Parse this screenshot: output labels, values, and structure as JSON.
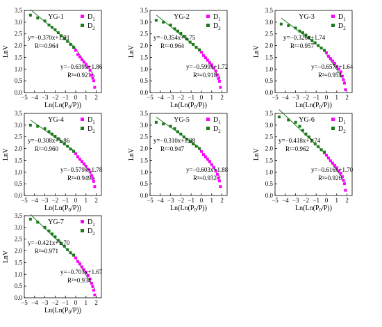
{
  "colors": {
    "d1": "#ff00ff",
    "d2": "#1a7a1a",
    "fit": "#1a7a1a",
    "axis": "#000000"
  },
  "chart_data": [
    {
      "type": "scatter",
      "title": "YG-1",
      "xlabel": "Ln(Ln(P0/P))",
      "ylabel": "LnV",
      "xlim": [
        -5,
        2.5
      ],
      "ylim": [
        0,
        3.5
      ],
      "series": [
        {
          "name": "D1",
          "x": [
            -0.2,
            0.0,
            0.2,
            0.4,
            0.6,
            0.8,
            1.0,
            1.2,
            1.4,
            1.55,
            1.65,
            1.75,
            1.85
          ],
          "y": [
            1.92,
            1.8,
            1.62,
            1.52,
            1.4,
            1.3,
            1.2,
            1.08,
            0.95,
            0.75,
            0.62,
            0.5,
            0.22
          ]
        },
        {
          "name": "D2",
          "x": [
            -4.4,
            -3.7,
            -3.0,
            -2.6,
            -2.3,
            -2.0,
            -1.7,
            -1.4,
            -1.1,
            -0.8,
            -0.5,
            -0.2
          ],
          "y": [
            3.3,
            3.18,
            3.05,
            2.88,
            2.78,
            2.68,
            2.55,
            2.42,
            2.3,
            2.18,
            2.05,
            1.93
          ]
        }
      ],
      "fits": [
        {
          "series": "D2",
          "slope": -0.37,
          "intercept": 1.91,
          "x_range": [
            -4.4,
            -0.2
          ],
          "equation": "y=−0.370x+1.91",
          "r2": "R²=0.964"
        },
        {
          "series": "D1",
          "slope": -0.639,
          "intercept": 1.86,
          "x_range": [
            -0.2,
            1.85
          ],
          "equation": "y=−0.639x+1.86",
          "r2": "R²=0.921"
        }
      ]
    },
    {
      "type": "scatter",
      "title": "YG-2",
      "xlabel": "Ln(Ln(P0/P))",
      "ylabel": "LnV",
      "xlim": [
        -5,
        2.5
      ],
      "ylim": [
        0,
        3.5
      ],
      "series": [
        {
          "name": "D1",
          "x": [
            -0.2,
            0.0,
            0.2,
            0.4,
            0.6,
            0.8,
            1.0,
            1.2,
            1.4,
            1.55,
            1.65,
            1.75,
            1.85
          ],
          "y": [
            1.82,
            1.72,
            1.58,
            1.48,
            1.38,
            1.28,
            1.18,
            1.05,
            0.92,
            0.75,
            0.6,
            0.48,
            0.22
          ]
        },
        {
          "name": "D2",
          "x": [
            -4.4,
            -3.7,
            -3.0,
            -2.6,
            -2.3,
            -2.0,
            -1.7,
            -1.4,
            -1.1,
            -0.8,
            -0.5,
            -0.2
          ],
          "y": [
            3.08,
            3.0,
            2.88,
            2.72,
            2.62,
            2.52,
            2.4,
            2.28,
            2.15,
            2.05,
            1.93,
            1.82
          ]
        }
      ],
      "fits": [
        {
          "series": "D2",
          "slope": -0.354,
          "intercept": 1.75,
          "x_range": [
            -4.4,
            -0.2
          ],
          "equation": "y=−0.354x+1.75",
          "r2": "R²=0.964"
        },
        {
          "series": "D1",
          "slope": -0.599,
          "intercept": 1.72,
          "x_range": [
            -0.2,
            1.85
          ],
          "equation": "y=−0.599x+1.72",
          "r2": "R²=0.918"
        }
      ]
    },
    {
      "type": "scatter",
      "title": "YG-3",
      "xlabel": "Ln(Ln(P0/P))",
      "ylabel": "LnV",
      "xlim": [
        -5,
        2.5
      ],
      "ylim": [
        0,
        3.5
      ],
      "series": [
        {
          "name": "D1",
          "x": [
            -0.2,
            0.0,
            0.2,
            0.4,
            0.6,
            0.8,
            1.0,
            1.2,
            1.4,
            1.55,
            1.65,
            1.75,
            1.85
          ],
          "y": [
            1.8,
            1.7,
            1.55,
            1.45,
            1.35,
            1.25,
            1.12,
            1.0,
            0.88,
            0.7,
            0.55,
            0.4,
            0.12
          ]
        },
        {
          "name": "D2",
          "x": [
            -4.4,
            -3.7,
            -3.0,
            -2.6,
            -2.3,
            -2.0,
            -1.7,
            -1.4,
            -1.1,
            -0.8,
            -0.5,
            -0.2
          ],
          "y": [
            2.92,
            2.85,
            2.75,
            2.62,
            2.55,
            2.45,
            2.35,
            2.22,
            2.12,
            2.0,
            1.9,
            1.8
          ]
        }
      ],
      "fits": [
        {
          "series": "D2",
          "slope": -0.326,
          "intercept": 1.74,
          "x_range": [
            -4.4,
            -0.2
          ],
          "equation": "y=−0.326x+1.74",
          "r2": "R²=0.957"
        },
        {
          "series": "D1",
          "slope": -0.657,
          "intercept": 1.64,
          "x_range": [
            -0.2,
            1.85
          ],
          "equation": "y=−0.657x+1.64",
          "r2": "R²=0.954"
        }
      ]
    },
    {
      "type": "scatter",
      "title": "YG-4",
      "xlabel": "Ln(Ln(P0/P))",
      "ylabel": "LnV",
      "xlim": [
        -5,
        2.5
      ],
      "ylim": [
        0,
        3.5
      ],
      "series": [
        {
          "name": "D1",
          "x": [
            -0.2,
            0.0,
            0.2,
            0.4,
            0.6,
            0.8,
            1.0,
            1.2,
            1.4,
            1.55,
            1.65,
            1.75,
            1.85
          ],
          "y": [
            1.88,
            1.78,
            1.65,
            1.55,
            1.45,
            1.35,
            1.25,
            1.12,
            1.0,
            0.85,
            0.72,
            0.6,
            0.38
          ]
        },
        {
          "name": "D2",
          "x": [
            -4.4,
            -3.7,
            -3.0,
            -2.6,
            -2.3,
            -2.0,
            -1.7,
            -1.4,
            -1.1,
            -0.8,
            -0.5,
            -0.2
          ],
          "y": [
            3.0,
            2.95,
            2.85,
            2.72,
            2.62,
            2.52,
            2.42,
            2.3,
            2.2,
            2.1,
            1.98,
            1.88
          ]
        }
      ],
      "fits": [
        {
          "series": "D2",
          "slope": -0.308,
          "intercept": 1.86,
          "x_range": [
            -4.4,
            -0.2
          ],
          "equation": "y=−0.308x+1.86",
          "r2": "R²=0.960"
        },
        {
          "series": "D1",
          "slope": -0.579,
          "intercept": 1.78,
          "x_range": [
            -0.2,
            1.85
          ],
          "equation": "y=−0.579x+1.78",
          "r2": "R²=0.949"
        }
      ]
    },
    {
      "type": "scatter",
      "title": "YG-5",
      "xlabel": "Ln(Ln(P0/P))",
      "ylabel": "LnV",
      "xlim": [
        -5,
        2.5
      ],
      "ylim": [
        0,
        3.5
      ],
      "series": [
        {
          "name": "D1",
          "x": [
            -0.2,
            0.0,
            0.2,
            0.4,
            0.6,
            0.8,
            1.0,
            1.2,
            1.4,
            1.55,
            1.65,
            1.75,
            1.85
          ],
          "y": [
            2.0,
            1.88,
            1.75,
            1.65,
            1.55,
            1.45,
            1.32,
            1.2,
            1.05,
            0.9,
            0.75,
            0.62,
            0.38
          ]
        },
        {
          "name": "D2",
          "x": [
            -4.4,
            -3.7,
            -3.0,
            -2.6,
            -2.3,
            -2.0,
            -1.7,
            -1.4,
            -1.1,
            -0.8,
            -0.5,
            -0.2
          ],
          "y": [
            3.12,
            3.05,
            2.95,
            2.85,
            2.72,
            2.62,
            2.5,
            2.4,
            2.3,
            2.2,
            2.1,
            2.0
          ]
        }
      ],
      "fits": [
        {
          "series": "D2",
          "slope": -0.31,
          "intercept": 1.98,
          "x_range": [
            -4.4,
            -0.2
          ],
          "equation": "y=−0.310x+1.98",
          "r2": "R²=0.947"
        },
        {
          "series": "D1",
          "slope": -0.603,
          "intercept": 1.88,
          "x_range": [
            -0.2,
            1.85
          ],
          "equation": "y=−0.603x+1.88",
          "r2": "R²=0.932"
        }
      ]
    },
    {
      "type": "scatter",
      "title": "YG-6",
      "xlabel": "Ln(Ln(P0/P))",
      "ylabel": "LnV",
      "xlim": [
        -5,
        2.5
      ],
      "ylim": [
        0,
        3.5
      ],
      "series": [
        {
          "name": "D1",
          "x": [
            -0.2,
            0.0,
            0.2,
            0.4,
            0.6,
            0.8,
            1.0,
            1.2,
            1.4,
            1.55,
            1.65,
            1.75,
            1.85
          ],
          "y": [
            1.82,
            1.72,
            1.6,
            1.48,
            1.38,
            1.28,
            1.18,
            1.05,
            0.95,
            0.8,
            0.65,
            0.5,
            0.22
          ]
        },
        {
          "name": "D2",
          "x": [
            -4.6,
            -3.7,
            -3.0,
            -2.6,
            -2.3,
            -2.0,
            -1.7,
            -1.4,
            -1.1,
            -0.8,
            -0.5,
            -0.2
          ],
          "y": [
            3.35,
            3.22,
            3.12,
            2.95,
            2.78,
            2.62,
            2.5,
            2.35,
            2.2,
            2.08,
            1.95,
            1.85
          ]
        }
      ],
      "fits": [
        {
          "series": "D2",
          "slope": -0.418,
          "intercept": 1.74,
          "x_range": [
            -4.6,
            -0.2
          ],
          "equation": "y=−0.418x+1.74",
          "r2": "R²=0.962"
        },
        {
          "series": "D1",
          "slope": -0.616,
          "intercept": 1.7,
          "x_range": [
            -0.2,
            1.85
          ],
          "equation": "y=−0.616x+1.70",
          "r2": "R²=0.926"
        }
      ]
    },
    {
      "type": "scatter",
      "title": "YG-7",
      "xlabel": "Ln(Ln(P0/P))",
      "ylabel": "LnV",
      "xlim": [
        -5,
        2.5
      ],
      "ylim": [
        0,
        3.5
      ],
      "series": [
        {
          "name": "D1",
          "x": [
            -0.2,
            0.0,
            0.2,
            0.4,
            0.6,
            0.8,
            1.0,
            1.2,
            1.4,
            1.55,
            1.65,
            1.75,
            1.85
          ],
          "y": [
            1.82,
            1.7,
            1.55,
            1.45,
            1.32,
            1.2,
            1.08,
            0.95,
            0.8,
            0.62,
            0.48,
            0.32,
            0.12
          ]
        },
        {
          "name": "D2",
          "x": [
            -4.4,
            -3.7,
            -3.0,
            -2.6,
            -2.3,
            -2.0,
            -1.7,
            -1.4,
            -1.1,
            -0.8,
            -0.5,
            -0.2
          ],
          "y": [
            3.35,
            3.22,
            3.0,
            2.85,
            2.72,
            2.6,
            2.45,
            2.32,
            2.2,
            2.05,
            1.92,
            1.82
          ]
        }
      ],
      "fits": [
        {
          "series": "D2",
          "slope": -0.421,
          "intercept": 1.7,
          "x_range": [
            -4.4,
            -0.2
          ],
          "equation": "y=−0.421x+1.70",
          "r2": "R²=0.971"
        },
        {
          "series": "D1",
          "slope": -0.701,
          "intercept": 1.67,
          "x_range": [
            -0.2,
            1.85
          ],
          "equation": "y=−0.701x+1.67",
          "r2": "R²=0.934"
        }
      ]
    }
  ]
}
